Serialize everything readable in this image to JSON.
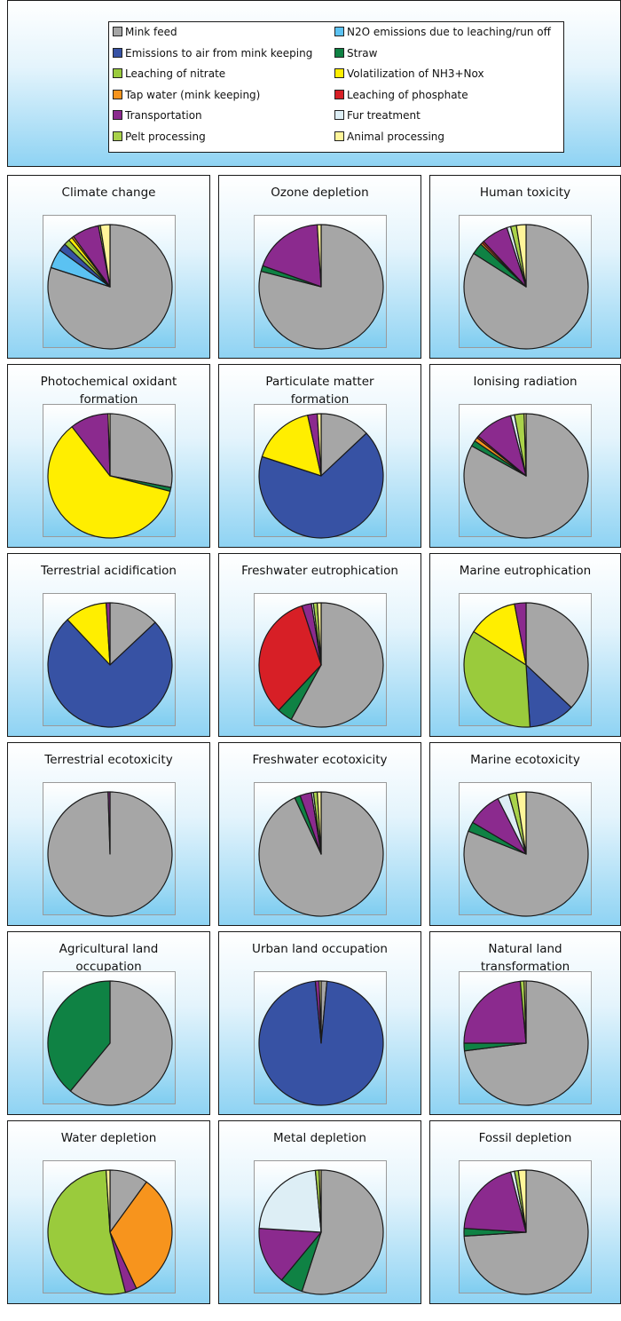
{
  "legend": [
    {
      "key": "mink_feed",
      "label": "Mink feed",
      "color": "#a6a6a6"
    },
    {
      "key": "n2o",
      "label": "N2O emissions due to leaching/run off",
      "color": "#5bc2f2"
    },
    {
      "key": "emis_air",
      "label": "Emissions to air from mink keeping",
      "color": "#3752a4"
    },
    {
      "key": "straw",
      "label": "Straw",
      "color": "#0f8244"
    },
    {
      "key": "nitrate",
      "label": "Leaching of nitrate",
      "color": "#9acb3c"
    },
    {
      "key": "nh3",
      "label": "Volatilization of NH3+Nox",
      "color": "#ffee00"
    },
    {
      "key": "tap",
      "label": "Tap water (mink keeping)",
      "color": "#f7941d"
    },
    {
      "key": "phosphate",
      "label": "Leaching of phosphate",
      "color": "#d71f26"
    },
    {
      "key": "transport",
      "label": "Transportation",
      "color": "#8b2a8e"
    },
    {
      "key": "fur",
      "label": "Fur treatment",
      "color": "#ddeef5"
    },
    {
      "key": "pelt",
      "label": "Pelt processing",
      "color": "#a9d24a"
    },
    {
      "key": "animal",
      "label": "Animal processing",
      "color": "#fff59a"
    }
  ],
  "chart_data": [
    {
      "type": "pie",
      "title": "Climate change",
      "slices": [
        {
          "key": "mink_feed",
          "value": 80
        },
        {
          "key": "n2o",
          "value": 5
        },
        {
          "key": "emis_air",
          "value": 2
        },
        {
          "key": "nitrate",
          "value": 1.5
        },
        {
          "key": "nh3",
          "value": 1
        },
        {
          "key": "tap",
          "value": 0.5
        },
        {
          "key": "transport",
          "value": 7
        },
        {
          "key": "pelt",
          "value": 0.5
        },
        {
          "key": "animal",
          "value": 2.5
        }
      ]
    },
    {
      "type": "pie",
      "title": "Ozone depletion",
      "slices": [
        {
          "key": "mink_feed",
          "value": 79
        },
        {
          "key": "straw",
          "value": 1.5
        },
        {
          "key": "transport",
          "value": 18.5
        },
        {
          "key": "animal",
          "value": 1
        }
      ]
    },
    {
      "type": "pie",
      "title": "Human toxicity",
      "slices": [
        {
          "key": "mink_feed",
          "value": 84
        },
        {
          "key": "straw",
          "value": 3
        },
        {
          "key": "tap",
          "value": 0.5
        },
        {
          "key": "phosphate",
          "value": 0.5
        },
        {
          "key": "transport",
          "value": 7
        },
        {
          "key": "fur",
          "value": 1
        },
        {
          "key": "pelt",
          "value": 1.5
        },
        {
          "key": "animal",
          "value": 2.5
        }
      ]
    },
    {
      "type": "pie",
      "title": "Photochemical oxidant formation",
      "slices": [
        {
          "key": "mink_feed",
          "value": 28
        },
        {
          "key": "straw",
          "value": 1
        },
        {
          "key": "nh3",
          "value": 60.5
        },
        {
          "key": "transport",
          "value": 10
        },
        {
          "key": "animal",
          "value": 0.5
        }
      ]
    },
    {
      "type": "pie",
      "title": "Particulate matter formation",
      "slices": [
        {
          "key": "mink_feed",
          "value": 13
        },
        {
          "key": "emis_air",
          "value": 67
        },
        {
          "key": "nh3",
          "value": 16.5
        },
        {
          "key": "transport",
          "value": 2.5
        },
        {
          "key": "animal",
          "value": 1
        }
      ]
    },
    {
      "type": "pie",
      "title": "Ionising radiation",
      "slices": [
        {
          "key": "mink_feed",
          "value": 83
        },
        {
          "key": "straw",
          "value": 1.5
        },
        {
          "key": "tap",
          "value": 1
        },
        {
          "key": "phosphate",
          "value": 0.5
        },
        {
          "key": "transport",
          "value": 10
        },
        {
          "key": "fur",
          "value": 1
        },
        {
          "key": "pelt",
          "value": 2.5
        },
        {
          "key": "animal",
          "value": 0.5
        }
      ]
    },
    {
      "type": "pie",
      "title": "Terrestrial acidification",
      "slices": [
        {
          "key": "mink_feed",
          "value": 13
        },
        {
          "key": "emis_air",
          "value": 75
        },
        {
          "key": "nh3",
          "value": 11
        },
        {
          "key": "transport",
          "value": 1
        }
      ]
    },
    {
      "type": "pie",
      "title": "Freshwater eutrophication",
      "slices": [
        {
          "key": "mink_feed",
          "value": 58
        },
        {
          "key": "straw",
          "value": 4
        },
        {
          "key": "phosphate",
          "value": 33
        },
        {
          "key": "transport",
          "value": 2.5
        },
        {
          "key": "fur",
          "value": 0.5
        },
        {
          "key": "pelt",
          "value": 1
        },
        {
          "key": "animal",
          "value": 1
        }
      ]
    },
    {
      "type": "pie",
      "title": "Marine eutrophication",
      "slices": [
        {
          "key": "mink_feed",
          "value": 37
        },
        {
          "key": "emis_air",
          "value": 12
        },
        {
          "key": "nitrate",
          "value": 35
        },
        {
          "key": "nh3",
          "value": 13
        },
        {
          "key": "transport",
          "value": 3
        }
      ]
    },
    {
      "type": "pie",
      "title": "Terrestrial ecotoxicity",
      "slices": [
        {
          "key": "mink_feed",
          "value": 99.5
        },
        {
          "key": "transport",
          "value": 0.5
        }
      ]
    },
    {
      "type": "pie",
      "title": "Freshwater ecotoxicity",
      "slices": [
        {
          "key": "mink_feed",
          "value": 93
        },
        {
          "key": "straw",
          "value": 1.5
        },
        {
          "key": "transport",
          "value": 3
        },
        {
          "key": "fur",
          "value": 0.5
        },
        {
          "key": "pelt",
          "value": 1
        },
        {
          "key": "animal",
          "value": 1
        }
      ]
    },
    {
      "type": "pie",
      "title": "Marine ecotoxicity",
      "slices": [
        {
          "key": "mink_feed",
          "value": 81
        },
        {
          "key": "straw",
          "value": 2.5
        },
        {
          "key": "transport",
          "value": 9
        },
        {
          "key": "fur",
          "value": 3
        },
        {
          "key": "pelt",
          "value": 2
        },
        {
          "key": "animal",
          "value": 2.5
        }
      ]
    },
    {
      "type": "pie",
      "title": "Agricultural land occupation",
      "slices": [
        {
          "key": "mink_feed",
          "value": 61
        },
        {
          "key": "straw",
          "value": 39
        }
      ]
    },
    {
      "type": "pie",
      "title": "Urban land occupation",
      "slices": [
        {
          "key": "mink_feed",
          "value": 1.5
        },
        {
          "key": "emis_air",
          "value": 97
        },
        {
          "key": "transport",
          "value": 1
        },
        {
          "key": "animal",
          "value": 0.5
        }
      ]
    },
    {
      "type": "pie",
      "title": "Natural land transformation",
      "slices": [
        {
          "key": "mink_feed",
          "value": 73
        },
        {
          "key": "straw",
          "value": 2
        },
        {
          "key": "transport",
          "value": 23.5
        },
        {
          "key": "pelt",
          "value": 1
        },
        {
          "key": "animal",
          "value": 0.5
        }
      ]
    },
    {
      "type": "pie",
      "title": "Water depletion",
      "slices": [
        {
          "key": "mink_feed",
          "value": 10
        },
        {
          "key": "tap",
          "value": 33
        },
        {
          "key": "transport",
          "value": 3
        },
        {
          "key": "nitrate",
          "value": 53
        },
        {
          "key": "animal",
          "value": 1
        }
      ]
    },
    {
      "type": "pie",
      "title": "Metal depletion",
      "slices": [
        {
          "key": "mink_feed",
          "value": 55
        },
        {
          "key": "straw",
          "value": 6
        },
        {
          "key": "transport",
          "value": 15
        },
        {
          "key": "fur",
          "value": 22.5
        },
        {
          "key": "pelt",
          "value": 1
        },
        {
          "key": "animal",
          "value": 0.5
        }
      ]
    },
    {
      "type": "pie",
      "title": "Fossil depletion",
      "slices": [
        {
          "key": "mink_feed",
          "value": 74
        },
        {
          "key": "straw",
          "value": 2
        },
        {
          "key": "transport",
          "value": 20
        },
        {
          "key": "fur",
          "value": 1
        },
        {
          "key": "pelt",
          "value": 1
        },
        {
          "key": "animal",
          "value": 2
        }
      ]
    }
  ]
}
